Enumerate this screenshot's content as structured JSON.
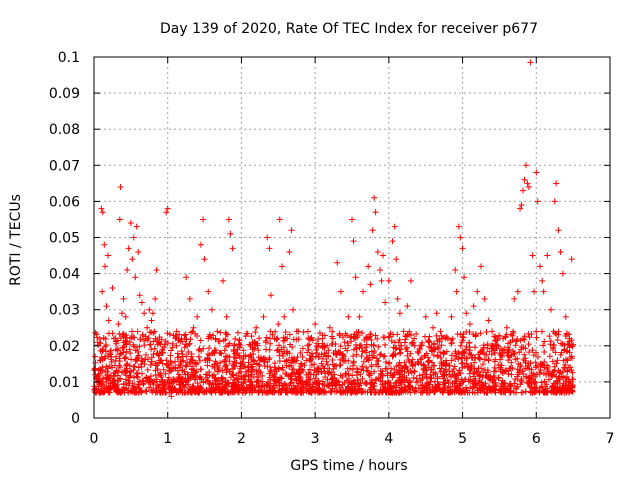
{
  "chart_data": {
    "type": "scatter",
    "title": "Day 139 of 2020, Rate Of TEC Index for receiver p677",
    "xlabel": "GPS time / hours",
    "ylabel": "ROTI / TECUs",
    "xlim": [
      0,
      7
    ],
    "ylim": [
      0,
      0.1
    ],
    "xticks": [
      "0",
      "1",
      "2",
      "3",
      "4",
      "5",
      "6",
      "7"
    ],
    "yticks": [
      "0",
      "0.01",
      "0.02",
      "0.03",
      "0.04",
      "0.05",
      "0.06",
      "0.07",
      "0.08",
      "0.09",
      "0.1"
    ],
    "grid": true,
    "legend": "none",
    "marker": "+",
    "color": "#ff0000",
    "series": [
      {
        "points": [
          [
            0.02,
            0.012
          ],
          [
            0.05,
            0.021
          ],
          [
            0.08,
            0.016
          ],
          [
            0.1,
            0.058
          ],
          [
            0.11,
            0.035
          ],
          [
            0.12,
            0.057
          ],
          [
            0.14,
            0.048
          ],
          [
            0.15,
            0.042
          ],
          [
            0.17,
            0.031
          ],
          [
            0.19,
            0.045
          ],
          [
            0.2,
            0.027
          ],
          [
            0.22,
            0.018
          ],
          [
            0.25,
            0.036
          ],
          [
            0.27,
            0.022
          ],
          [
            0.3,
            0.017
          ],
          [
            0.33,
            0.026
          ],
          [
            0.35,
            0.055
          ],
          [
            0.36,
            0.064
          ],
          [
            0.38,
            0.029
          ],
          [
            0.4,
            0.033
          ],
          [
            0.43,
            0.028
          ],
          [
            0.45,
            0.041
          ],
          [
            0.47,
            0.047
          ],
          [
            0.5,
            0.054
          ],
          [
            0.52,
            0.044
          ],
          [
            0.54,
            0.05
          ],
          [
            0.56,
            0.039
          ],
          [
            0.58,
            0.053
          ],
          [
            0.6,
            0.046
          ],
          [
            0.62,
            0.034
          ],
          [
            0.65,
            0.032
          ],
          [
            0.68,
            0.029
          ],
          [
            0.7,
            0.022
          ],
          [
            0.72,
            0.025
          ],
          [
            0.75,
            0.03
          ],
          [
            0.78,
            0.027
          ],
          [
            0.8,
            0.029
          ],
          [
            0.83,
            0.033
          ],
          [
            0.85,
            0.041
          ],
          [
            0.88,
            0.021
          ],
          [
            0.9,
            0.016
          ],
          [
            0.93,
            0.018
          ],
          [
            0.96,
            0.01
          ],
          [
            0.98,
            0.057
          ],
          [
            1.0,
            0.058
          ],
          [
            1.02,
            0.013
          ],
          [
            1.05,
            0.006
          ],
          [
            1.1,
            0.014
          ],
          [
            1.15,
            0.022
          ],
          [
            1.2,
            0.017
          ],
          [
            1.25,
            0.039
          ],
          [
            1.3,
            0.033
          ],
          [
            1.35,
            0.025
          ],
          [
            1.4,
            0.028
          ],
          [
            1.45,
            0.048
          ],
          [
            1.48,
            0.055
          ],
          [
            1.5,
            0.044
          ],
          [
            1.55,
            0.035
          ],
          [
            1.6,
            0.03
          ],
          [
            1.65,
            0.022
          ],
          [
            1.7,
            0.018
          ],
          [
            1.75,
            0.038
          ],
          [
            1.8,
            0.028
          ],
          [
            1.83,
            0.055
          ],
          [
            1.85,
            0.051
          ],
          [
            1.88,
            0.047
          ],
          [
            1.9,
            0.02
          ],
          [
            1.95,
            0.018
          ],
          [
            2.0,
            0.015
          ],
          [
            2.05,
            0.01
          ],
          [
            2.1,
            0.014
          ],
          [
            2.15,
            0.019
          ],
          [
            2.2,
            0.025
          ],
          [
            2.25,
            0.016
          ],
          [
            2.3,
            0.028
          ],
          [
            2.35,
            0.05
          ],
          [
            2.38,
            0.047
          ],
          [
            2.4,
            0.034
          ],
          [
            2.45,
            0.022
          ],
          [
            2.5,
            0.026
          ],
          [
            2.52,
            0.055
          ],
          [
            2.55,
            0.042
          ],
          [
            2.58,
            0.028
          ],
          [
            2.6,
            0.022
          ],
          [
            2.65,
            0.046
          ],
          [
            2.68,
            0.052
          ],
          [
            2.7,
            0.03
          ],
          [
            2.75,
            0.024
          ],
          [
            2.8,
            0.018
          ],
          [
            2.9,
            0.02
          ],
          [
            3.0,
            0.026
          ],
          [
            3.05,
            0.017
          ],
          [
            3.1,
            0.022
          ],
          [
            3.15,
            0.018
          ],
          [
            3.2,
            0.025
          ],
          [
            3.25,
            0.018
          ],
          [
            3.3,
            0.043
          ],
          [
            3.35,
            0.035
          ],
          [
            3.4,
            0.021
          ],
          [
            3.45,
            0.028
          ],
          [
            3.5,
            0.055
          ],
          [
            3.52,
            0.049
          ],
          [
            3.55,
            0.039
          ],
          [
            3.6,
            0.028
          ],
          [
            3.65,
            0.035
          ],
          [
            3.7,
            0.022
          ],
          [
            3.72,
            0.042
          ],
          [
            3.75,
            0.037
          ],
          [
            3.78,
            0.052
          ],
          [
            3.8,
            0.061
          ],
          [
            3.82,
            0.057
          ],
          [
            3.85,
            0.046
          ],
          [
            3.88,
            0.041
          ],
          [
            3.9,
            0.038
          ],
          [
            3.92,
            0.045
          ],
          [
            3.95,
            0.032
          ],
          [
            4.0,
            0.038
          ],
          [
            4.05,
            0.049
          ],
          [
            4.08,
            0.053
          ],
          [
            4.1,
            0.044
          ],
          [
            4.12,
            0.033
          ],
          [
            4.15,
            0.029
          ],
          [
            4.2,
            0.024
          ],
          [
            4.25,
            0.031
          ],
          [
            4.3,
            0.038
          ],
          [
            4.35,
            0.02
          ],
          [
            4.4,
            0.018
          ],
          [
            4.5,
            0.028
          ],
          [
            4.55,
            0.021
          ],
          [
            4.6,
            0.025
          ],
          [
            4.65,
            0.029
          ],
          [
            4.7,
            0.024
          ],
          [
            4.75,
            0.018
          ],
          [
            4.8,
            0.022
          ],
          [
            4.85,
            0.028
          ],
          [
            4.9,
            0.041
          ],
          [
            4.92,
            0.035
          ],
          [
            4.95,
            0.053
          ],
          [
            4.97,
            0.05
          ],
          [
            5.0,
            0.047
          ],
          [
            5.02,
            0.039
          ],
          [
            5.05,
            0.029
          ],
          [
            5.1,
            0.026
          ],
          [
            5.15,
            0.031
          ],
          [
            5.2,
            0.035
          ],
          [
            5.25,
            0.042
          ],
          [
            5.3,
            0.033
          ],
          [
            5.35,
            0.027
          ],
          [
            5.4,
            0.024
          ],
          [
            5.45,
            0.02
          ],
          [
            5.5,
            0.018
          ],
          [
            5.55,
            0.022
          ],
          [
            5.6,
            0.025
          ],
          [
            5.65,
            0.021
          ],
          [
            5.7,
            0.033
          ],
          [
            5.75,
            0.035
          ],
          [
            5.78,
            0.058
          ],
          [
            5.8,
            0.059
          ],
          [
            5.82,
            0.063
          ],
          [
            5.84,
            0.066
          ],
          [
            5.86,
            0.07
          ],
          [
            5.88,
            0.065
          ],
          [
            5.9,
            0.064
          ],
          [
            5.92,
            0.0985
          ],
          [
            5.95,
            0.045
          ],
          [
            5.97,
            0.035
          ],
          [
            6.0,
            0.068
          ],
          [
            6.02,
            0.06
          ],
          [
            6.05,
            0.042
          ],
          [
            6.08,
            0.038
          ],
          [
            6.1,
            0.035
          ],
          [
            6.15,
            0.045
          ],
          [
            6.2,
            0.03
          ],
          [
            6.25,
            0.06
          ],
          [
            6.27,
            0.065
          ],
          [
            6.3,
            0.052
          ],
          [
            6.33,
            0.046
          ],
          [
            6.36,
            0.04
          ],
          [
            6.4,
            0.028
          ],
          [
            6.45,
            0.022
          ],
          [
            6.48,
            0.044
          ]
        ]
      }
    ],
    "background_band": {
      "x_range": [
        0,
        6.5
      ],
      "y_range": [
        0.003,
        0.02
      ],
      "note": "dense cloud of + markers covering nearly the whole band"
    }
  }
}
